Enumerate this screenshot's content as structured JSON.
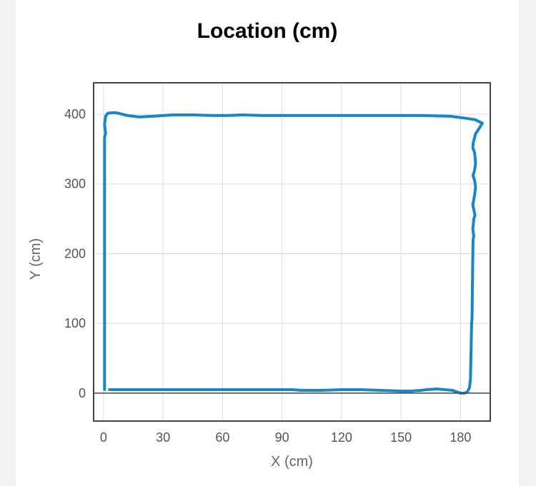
{
  "chart_data": {
    "type": "line",
    "title": "Location (cm)",
    "xlabel": "X (cm)",
    "ylabel": "Y (cm)",
    "xlim": [
      -5,
      195
    ],
    "ylim": [
      -40,
      445
    ],
    "xticks": [
      0,
      30,
      60,
      90,
      120,
      150,
      180
    ],
    "yticks": [
      0,
      100,
      200,
      300,
      400
    ],
    "grid": true,
    "series_color": "#1a86c8",
    "series": [
      {
        "x": [
          3,
          10,
          20,
          30,
          40,
          50,
          60,
          70,
          80,
          90,
          95,
          100,
          110,
          120,
          130,
          140,
          150,
          155,
          160,
          163,
          168,
          172,
          176,
          178,
          180,
          182,
          183.5,
          184.5,
          185,
          185.3,
          185.6,
          185.8,
          186,
          186.3,
          186.7,
          186.2,
          186.7,
          187.3,
          186.8,
          186.2,
          187,
          187.6,
          187.1,
          186.3,
          187.1,
          187.6,
          187.1,
          186.2,
          186.5,
          187.6,
          189,
          191,
          187.5,
          183,
          175,
          160,
          140,
          120,
          100,
          90,
          80,
          70,
          63,
          55,
          45,
          35,
          25,
          18,
          12,
          8,
          6,
          4,
          2,
          1,
          0.5,
          0.8,
          1,
          0.5,
          0.5,
          0.5,
          0.5
        ],
        "y": [
          5,
          5,
          5,
          5,
          5,
          5,
          5,
          5,
          5,
          5,
          5,
          4,
          4,
          5,
          5,
          4,
          3,
          3,
          4,
          5,
          6,
          5,
          4,
          2,
          0,
          0,
          2,
          8,
          20,
          60,
          100,
          108,
          150,
          220,
          225,
          235,
          250,
          255,
          262,
          270,
          282,
          295,
          305,
          312,
          320,
          330,
          345,
          352,
          360,
          372,
          378,
          387,
          392,
          394,
          397,
          398,
          398,
          398,
          398,
          398,
          398,
          399,
          398,
          398,
          399,
          399,
          397,
          396,
          398,
          401,
          402,
          402,
          401,
          397,
          385,
          378,
          372,
          367,
          350,
          200,
          5
        ]
      }
    ]
  }
}
